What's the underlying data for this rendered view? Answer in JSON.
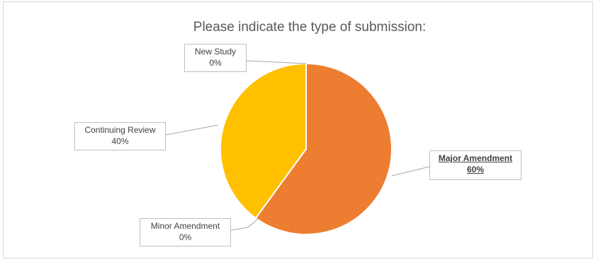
{
  "chart_data": {
    "type": "pie",
    "title": "Please indicate the type of submission:",
    "slices": [
      {
        "name": "Major Amendment",
        "value": 60,
        "label_value": "60%",
        "color": "#ED7D31",
        "emphasized": true
      },
      {
        "name": "Minor Amendment",
        "value": 0,
        "label_value": "0%",
        "color": "#A5A5A5",
        "emphasized": false
      },
      {
        "name": "Continuing Review",
        "value": 40,
        "label_value": "40%",
        "color": "#FFC000",
        "emphasized": false
      },
      {
        "name": "New Study",
        "value": 0,
        "label_value": "0%",
        "color": "#4472C4",
        "emphasized": false
      }
    ],
    "start_angle": "12 o'clock, clockwise",
    "legend": "none",
    "data_labels": "callouts with leader lines"
  }
}
